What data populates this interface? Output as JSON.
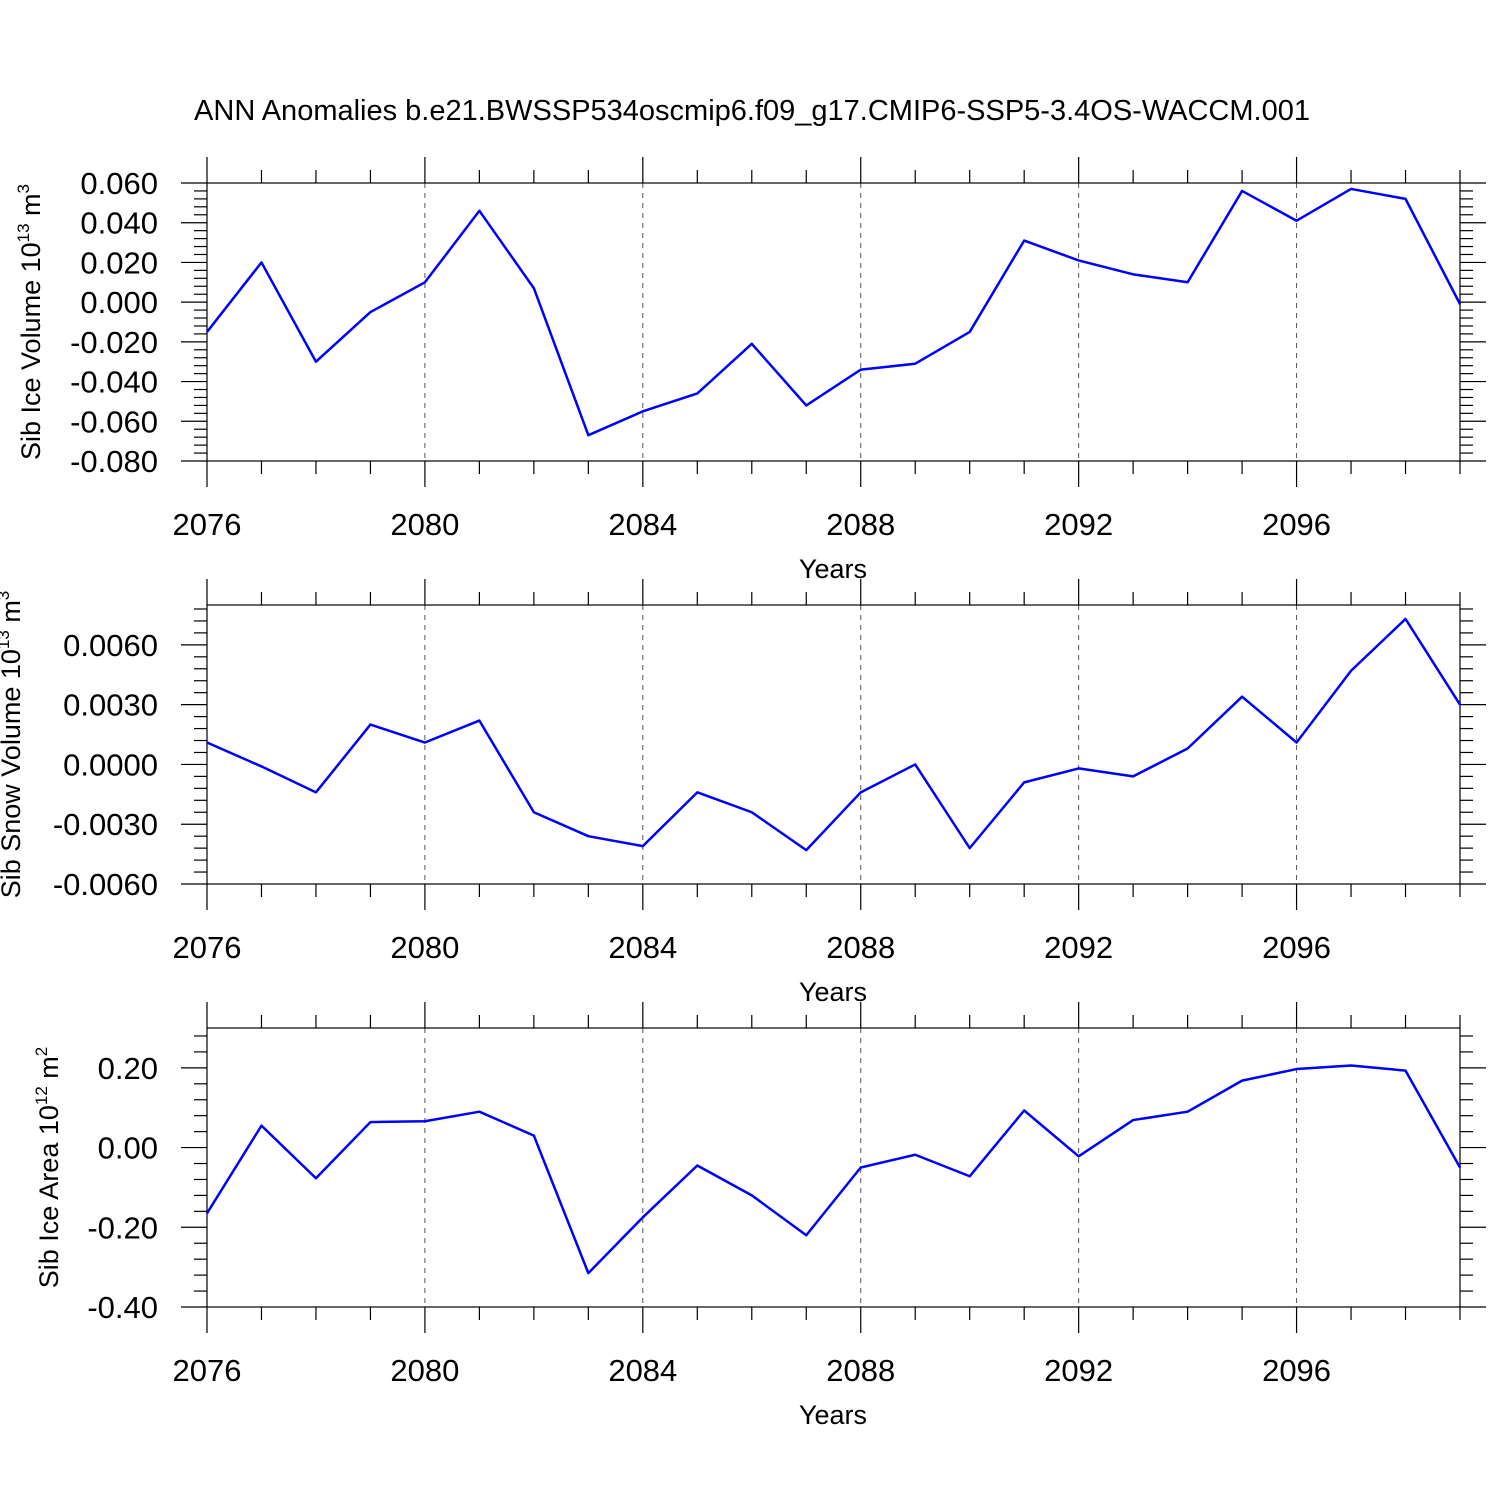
{
  "figure": {
    "title": "ANN Anomalies b.e21.BWSSP534oscmip6.f09_g17.CMIP6-SSP5-3.4OS-WACCM.001"
  },
  "chart_data": [
    {
      "type": "line",
      "xlabel": "Years",
      "ylabel": "Sib Ice Volume 10",
      "ylabel_exp": "13",
      "ylabel_unit": "m",
      "ylabel_unit_exp": "3",
      "xlim": [
        2076,
        2099
      ],
      "ylim": [
        -0.08,
        0.06
      ],
      "xticks": [
        2076,
        2080,
        2084,
        2088,
        2092,
        2096
      ],
      "xtick_labels": [
        "2076",
        "2080",
        "2084",
        "2088",
        "2092",
        "2096"
      ],
      "yticks": [
        -0.08,
        -0.06,
        -0.04,
        -0.02,
        0.0,
        0.02,
        0.04,
        0.06
      ],
      "ytick_labels": [
        "-0.080",
        "-0.060",
        "-0.040",
        "-0.020",
        "0.000",
        "0.020",
        "0.040",
        "0.060"
      ],
      "grid": "vertical dashed at major x ticks",
      "x": [
        2076,
        2077,
        2078,
        2079,
        2080,
        2081,
        2082,
        2083,
        2084,
        2085,
        2086,
        2087,
        2088,
        2089,
        2090,
        2091,
        2092,
        2093,
        2094,
        2095,
        2096,
        2097,
        2098,
        2099
      ],
      "series": [
        {
          "color": "#0000ff",
          "values": [
            -0.015,
            0.02,
            -0.03,
            -0.005,
            0.01,
            0.046,
            0.007,
            -0.067,
            -0.055,
            -0.046,
            -0.021,
            -0.052,
            -0.034,
            -0.031,
            -0.015,
            0.031,
            0.021,
            0.014,
            0.01,
            0.056,
            0.041,
            0.057,
            0.052,
            -0.001
          ]
        }
      ]
    },
    {
      "type": "line",
      "xlabel": "Years",
      "ylabel": "Sib Snow Volume 10",
      "ylabel_exp": "13",
      "ylabel_unit": "m",
      "ylabel_unit_exp": "3",
      "xlim": [
        2076,
        2099
      ],
      "ylim": [
        -0.006,
        0.008
      ],
      "xticks": [
        2076,
        2080,
        2084,
        2088,
        2092,
        2096
      ],
      "xtick_labels": [
        "2076",
        "2080",
        "2084",
        "2088",
        "2092",
        "2096"
      ],
      "yticks": [
        -0.006,
        -0.003,
        0.0,
        0.003,
        0.006
      ],
      "ytick_labels": [
        "-0.0060",
        "-0.0030",
        "0.0000",
        "0.0030",
        "0.0060"
      ],
      "grid": "vertical dashed at major x ticks",
      "x": [
        2076,
        2077,
        2078,
        2079,
        2080,
        2081,
        2082,
        2083,
        2084,
        2085,
        2086,
        2087,
        2088,
        2089,
        2090,
        2091,
        2092,
        2093,
        2094,
        2095,
        2096,
        2097,
        2098,
        2099
      ],
      "series": [
        {
          "color": "#0000ff",
          "values": [
            0.0011,
            -0.0001,
            -0.0014,
            0.002,
            0.0011,
            0.0022,
            -0.0024,
            -0.0036,
            -0.0041,
            -0.0014,
            -0.0024,
            -0.0043,
            -0.0014,
            0.0,
            -0.0042,
            -0.0009,
            -0.0002,
            -0.0006,
            0.0008,
            0.0034,
            0.0011,
            0.0047,
            0.0073,
            0.003
          ]
        }
      ]
    },
    {
      "type": "line",
      "xlabel": "Years",
      "ylabel": "Sib Ice Area 10",
      "ylabel_exp": "12",
      "ylabel_unit": "m",
      "ylabel_unit_exp": "2",
      "xlim": [
        2076,
        2099
      ],
      "ylim": [
        -0.4,
        0.3
      ],
      "xticks": [
        2076,
        2080,
        2084,
        2088,
        2092,
        2096
      ],
      "xtick_labels": [
        "2076",
        "2080",
        "2084",
        "2088",
        "2092",
        "2096"
      ],
      "yticks": [
        -0.4,
        -0.2,
        0.0,
        0.2
      ],
      "ytick_labels": [
        "-0.40",
        "-0.20",
        "0.00",
        "0.20"
      ],
      "grid": "vertical dashed at major x ticks",
      "x": [
        2076,
        2077,
        2078,
        2079,
        2080,
        2081,
        2082,
        2083,
        2084,
        2085,
        2086,
        2087,
        2088,
        2089,
        2090,
        2091,
        2092,
        2093,
        2094,
        2095,
        2096,
        2097,
        2098,
        2099
      ],
      "series": [
        {
          "color": "#0000ff",
          "values": [
            -0.165,
            0.055,
            -0.077,
            0.064,
            0.066,
            0.09,
            0.03,
            -0.315,
            -0.175,
            -0.045,
            -0.12,
            -0.22,
            -0.05,
            -0.018,
            -0.072,
            0.093,
            -0.022,
            0.069,
            0.09,
            0.168,
            0.197,
            0.206,
            0.193,
            -0.05
          ]
        }
      ]
    }
  ]
}
